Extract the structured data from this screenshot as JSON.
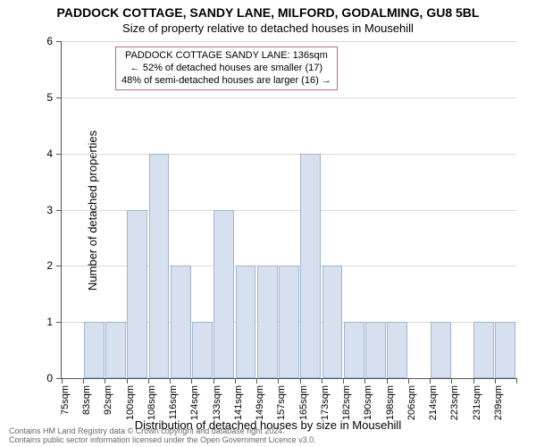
{
  "title": "PADDOCK COTTAGE, SANDY LANE, MILFORD, GODALMING, GU8 5BL",
  "subtitle": "Size of property relative to detached houses in Mousehill",
  "xlabel": "Distribution of detached houses by size in Mousehill",
  "ylabel": "Number of detached properties",
  "chart": {
    "type": "histogram",
    "ylim": [
      0,
      6
    ],
    "ytick_step": 1,
    "grid_color": "#d9d9d9",
    "axis_color": "#555555",
    "bar_fill": "#d6e0ef",
    "bar_edge": "#9fb5d3",
    "label_fontsize": 11,
    "title_fontsize": 14,
    "background": "#ffffff",
    "categories": [
      "75sqm",
      "83sqm",
      "92sqm",
      "100sqm",
      "108sqm",
      "116sqm",
      "124sqm",
      "133sqm",
      "141sqm",
      "149sqm",
      "157sqm",
      "165sqm",
      "173sqm",
      "182sqm",
      "190sqm",
      "198sqm",
      "206sqm",
      "214sqm",
      "223sqm",
      "231sqm",
      "239sqm"
    ],
    "values": [
      0,
      1,
      1,
      3,
      4,
      2,
      1,
      3,
      2,
      2,
      2,
      4,
      2,
      1,
      1,
      1,
      0,
      1,
      0,
      1,
      1
    ]
  },
  "annotation": {
    "line1": "PADDOCK COTTAGE SANDY LANE: 136sqm",
    "line2": "← 52% of detached houses are smaller (17)",
    "line3": "48% of semi-detached houses are larger (16) →",
    "border_color": "#c26f6f"
  },
  "footer": {
    "line1": "Contains HM Land Registry data © Crown copyright and database right 2024.",
    "line2": "Contains public sector information licensed under the Open Government Licence v3.0."
  }
}
